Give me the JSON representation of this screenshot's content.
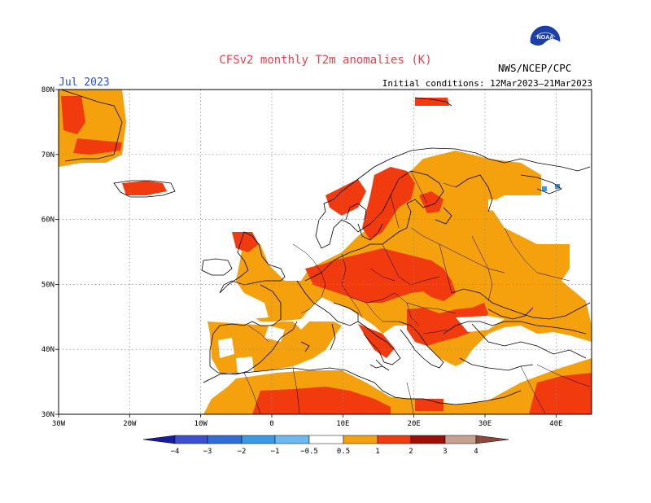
{
  "title": "CFSv2 monthly T2m anomalies (K)",
  "valid_month": "Jul 2023",
  "initial_conditions": "Initial conditions: 12Mar2023–21Mar2023",
  "organization": "NWS/NCEP/CPC",
  "logo_text": "NOAA",
  "map": {
    "lon_range": [
      -30,
      45
    ],
    "lat_range": [
      30,
      80
    ],
    "lon_ticks": [
      "30W",
      "20W",
      "10W",
      "0",
      "10E",
      "20E",
      "30E",
      "40E"
    ],
    "lat_ticks": [
      "80N",
      "70N",
      "60N",
      "50N",
      "40N",
      "30N"
    ],
    "grid": true,
    "grid_style": "dotted"
  },
  "colorbar": {
    "bounds": [
      "−4",
      "−3",
      "−2",
      "−1",
      "−0.5",
      "0.5",
      "1",
      "2",
      "3",
      "4"
    ],
    "colors": [
      "#1a1aa0",
      "#3b4fd0",
      "#2f6ed6",
      "#3b9ae8",
      "#6cb8f2",
      "#ffffff",
      "#f5a10e",
      "#f23a0f",
      "#a00c06",
      "#c8a090",
      "#8c4a3a"
    ],
    "extend": "both"
  },
  "anomaly_colors": {
    "c05_1": "#f5a10e",
    "c1_2": "#f23a0f",
    "c2_3": "#a00c06",
    "neg": "#3b9ae8"
  }
}
